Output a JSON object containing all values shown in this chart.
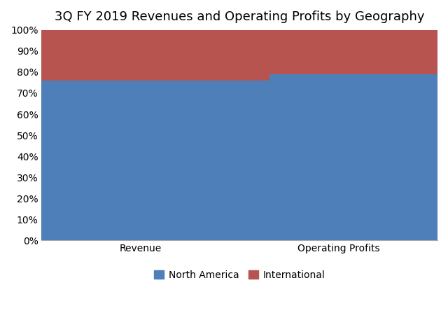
{
  "title": "3Q FY 2019 Revenues and Operating Profits by Geography",
  "categories": [
    "Revenue",
    "Operating Profits"
  ],
  "north_america": [
    0.76,
    0.79
  ],
  "international": [
    0.24,
    0.21
  ],
  "color_north_america": "#4E7FB8",
  "color_international": "#B85450",
  "ylim": [
    0,
    1
  ],
  "yticks": [
    0,
    0.1,
    0.2,
    0.3,
    0.4,
    0.5,
    0.6,
    0.7,
    0.8,
    0.9,
    1.0
  ],
  "ytick_labels": [
    "0%",
    "10%",
    "20%",
    "30%",
    "40%",
    "50%",
    "60%",
    "70%",
    "80%",
    "90%",
    "100%"
  ],
  "legend_labels": [
    "North America",
    "International"
  ],
  "bar_width": 0.65,
  "background_color": "#ffffff",
  "title_fontsize": 13,
  "tick_fontsize": 10,
  "legend_fontsize": 10,
  "x_positions": [
    0.25,
    0.75
  ],
  "xlim": [
    0,
    1
  ]
}
